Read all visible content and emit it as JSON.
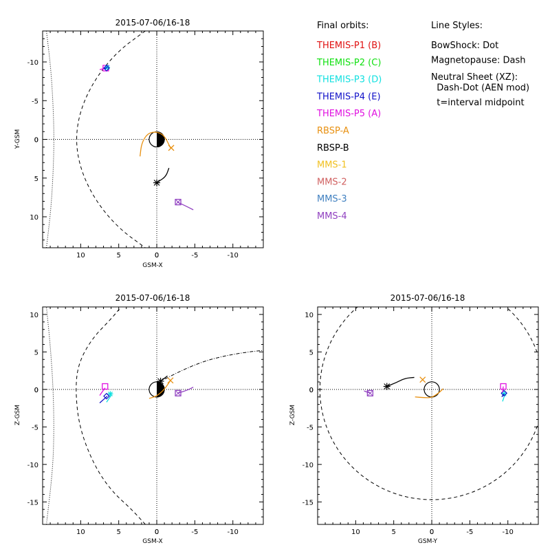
{
  "legend": {
    "orbits_title": "Final orbits:",
    "styles_title": "Line Styles:",
    "spacecraft": [
      {
        "label": "THEMIS-P1 (B)",
        "color": "#e01010"
      },
      {
        "label": "THEMIS-P2 (C)",
        "color": "#10e010"
      },
      {
        "label": "THEMIS-P3 (D)",
        "color": "#10e0e0"
      },
      {
        "label": "THEMIS-P4 (E)",
        "color": "#1010c8"
      },
      {
        "label": "THEMIS-P5 (A)",
        "color": "#e010e0"
      },
      {
        "label": "RBSP-A",
        "color": "#e89010"
      },
      {
        "label": "RBSP-B",
        "color": "#000000"
      },
      {
        "label": "MMS-1",
        "color": "#f0c020"
      },
      {
        "label": "MMS-2",
        "color": "#d06060"
      },
      {
        "label": "MMS-3",
        "color": "#4080c0"
      },
      {
        "label": "MMS-4",
        "color": "#9040c0"
      }
    ],
    "styles": [
      "BowShock: Dot",
      "Magnetopause: Dash",
      "Neutral Sheet (XZ):",
      "  Dash-Dot (AEN mod)",
      "  t=interval midpoint"
    ]
  },
  "chart_data": [
    {
      "type": "line",
      "title": "2015-07-06/16-18",
      "xlabel": "GSM-X",
      "ylabel": "Y-GSM",
      "xlim": [
        15,
        -14
      ],
      "ylim": [
        -14,
        14
      ],
      "y_inverted": true,
      "xticks": [
        10,
        5,
        0,
        -5,
        -10
      ],
      "yticks": [
        -10,
        -5,
        0,
        5,
        10
      ],
      "bow_shock": [
        [
          14.5,
          -14
        ],
        [
          13.9,
          -9
        ],
        [
          13.6,
          -4
        ],
        [
          13.5,
          0
        ],
        [
          13.6,
          4
        ],
        [
          13.9,
          9
        ],
        [
          14.5,
          14
        ]
      ],
      "magnetopause": [
        [
          1.5,
          -14
        ],
        [
          5,
          -11.5
        ],
        [
          8,
          -8
        ],
        [
          10,
          -4
        ],
        [
          10.7,
          0
        ],
        [
          10,
          4
        ],
        [
          8,
          8
        ],
        [
          5,
          11.5
        ],
        [
          1.5,
          14
        ]
      ],
      "series": [
        {
          "name": "THEMIS-P5 (A)",
          "points": [
            [
              7.5,
              -9.0
            ],
            [
              6.5,
              -9.3
            ]
          ],
          "marker": [
            6.7,
            -9.2
          ]
        },
        {
          "name": "THEMIS-P3 (D)",
          "points": [
            [
              6.8,
              -9.0
            ],
            [
              6.3,
              -9.5
            ]
          ],
          "marker": [
            6.5,
            -9.3
          ]
        },
        {
          "name": "THEMIS-P4 (E)",
          "points": [
            [
              6.9,
              -9.1
            ],
            [
              6.5,
              -9.3
            ]
          ],
          "marker": [
            6.6,
            -9.2
          ]
        },
        {
          "name": "RBSP-A",
          "points": [
            [
              2.2,
              2.2
            ],
            [
              2.0,
              0.5
            ],
            [
              1.2,
              -0.8
            ],
            [
              0,
              -1.0
            ],
            [
              -1.0,
              -0.5
            ],
            [
              -1.8,
              1.1
            ]
          ],
          "marker": [
            -1.9,
            1.1
          ]
        },
        {
          "name": "RBSP-B",
          "points": [
            [
              -1.6,
              3.7
            ],
            [
              -1.2,
              4.8
            ],
            [
              -0.3,
              5.4
            ],
            [
              0,
              5.6
            ]
          ],
          "marker": [
            0,
            5.6
          ]
        },
        {
          "name": "MMS-4",
          "points": [
            [
              -2.7,
              8.1
            ],
            [
              -3.8,
              8.6
            ],
            [
              -4.8,
              9.1
            ]
          ],
          "marker": [
            -2.8,
            8.1
          ]
        }
      ]
    },
    {
      "type": "line",
      "title": "2015-07-06/16-18",
      "xlabel": "GSM-X",
      "ylabel": "Z-GSM",
      "xlim": [
        15,
        -14
      ],
      "ylim": [
        -18,
        11
      ],
      "xticks": [
        10,
        5,
        0,
        -5,
        -10
      ],
      "yticks": [
        -15,
        -10,
        -5,
        0,
        5,
        10
      ],
      "bow_shock": [
        [
          14.5,
          -18
        ],
        [
          13.7,
          -11
        ],
        [
          13.5,
          -6
        ],
        [
          13.6,
          0
        ],
        [
          14.0,
          6
        ],
        [
          14.5,
          11
        ]
      ],
      "magnetopause": [
        [
          1.5,
          -18
        ],
        [
          3.3,
          -16
        ],
        [
          6,
          -13.5
        ],
        [
          8.3,
          -10
        ],
        [
          10.2,
          -5
        ],
        [
          10.7,
          0
        ],
        [
          10.3,
          3.5
        ],
        [
          8.5,
          6.8
        ],
        [
          6,
          9.4
        ],
        [
          4.7,
          11
        ]
      ],
      "neutral_sheet": [
        [
          -1.1,
          1.4
        ],
        [
          -3,
          2.4
        ],
        [
          -6,
          3.7
        ],
        [
          -9,
          4.5
        ],
        [
          -12,
          5
        ],
        [
          -14,
          5.2
        ]
      ],
      "series": [
        {
          "name": "THEMIS-P5 (A)",
          "points": [
            [
              7.5,
              -0.8
            ],
            [
              6.8,
              0.2
            ]
          ],
          "marker": [
            6.8,
            0.4
          ]
        },
        {
          "name": "THEMIS-P3 (D)",
          "points": [
            [
              6.6,
              -1.7
            ],
            [
              6.0,
              -0.8
            ]
          ],
          "marker": [
            6.1,
            -0.6
          ]
        },
        {
          "name": "THEMIS-P4 (E)",
          "points": [
            [
              7.5,
              -1.8
            ],
            [
              6.5,
              -0.9
            ]
          ],
          "marker": [
            6.6,
            -0.9
          ]
        },
        {
          "name": "RBSP-A",
          "points": [
            [
              1.0,
              -1.2
            ],
            [
              0,
              -0.9
            ],
            [
              -1,
              0
            ],
            [
              -1.8,
              1.2
            ]
          ],
          "marker": [
            -1.8,
            1.2
          ]
        },
        {
          "name": "RBSP-B",
          "points": [
            [
              -1.4,
              1.8
            ],
            [
              -0.9,
              1.4
            ],
            [
              -0.5,
              1.1
            ]
          ],
          "marker": [
            -0.5,
            1.1
          ]
        },
        {
          "name": "MMS-4",
          "points": [
            [
              -2.8,
              -0.5
            ],
            [
              -4,
              -0.1
            ],
            [
              -4.8,
              0.3
            ]
          ],
          "marker": [
            -2.8,
            -0.5
          ]
        }
      ]
    },
    {
      "type": "line",
      "title": "2015-07-06/16-18",
      "xlabel": "GSM-Y",
      "ylabel": "Z-GSM",
      "xlim": [
        15,
        -14
      ],
      "ylim": [
        -18,
        11
      ],
      "xticks": [
        10,
        5,
        0,
        -5,
        -10
      ],
      "yticks": [
        -15,
        -10,
        -5,
        0,
        5,
        10
      ],
      "magnetopause_circle": {
        "center": [
          0,
          0
        ],
        "radius": 14.7
      },
      "series": [
        {
          "name": "RBSP-B",
          "points": [
            [
              5.9,
              0.4
            ],
            [
              4.7,
              0.9
            ],
            [
              3.5,
              1.5
            ],
            [
              2.3,
              1.6
            ]
          ],
          "marker": [
            5.9,
            0.4
          ]
        },
        {
          "name": "RBSP-A",
          "points": [
            [
              2.2,
              -1.0
            ],
            [
              1.0,
              -1.1
            ],
            [
              0,
              -1.1
            ],
            [
              -1.0,
              -0.4
            ],
            [
              -1.5,
              0.1
            ]
          ],
          "marker": [
            1.2,
            1.3
          ]
        },
        {
          "name": "MMS-4",
          "points": [
            [
              8.9,
              -0.2
            ],
            [
              8.4,
              -0.4
            ],
            [
              8.0,
              -0.5
            ]
          ],
          "marker": [
            8.1,
            -0.5
          ]
        },
        {
          "name": "THEMIS-P3 (D)",
          "points": [
            [
              -9.3,
              -1.6
            ],
            [
              -9.6,
              -0.7
            ]
          ],
          "marker": [
            -9.5,
            -0.6
          ]
        },
        {
          "name": "THEMIS-P4 (E)",
          "points": [
            [
              -9.2,
              -1.0
            ],
            [
              -9.5,
              -0.6
            ]
          ],
          "marker": [
            -9.5,
            -0.5
          ]
        },
        {
          "name": "THEMIS-P5 (A)",
          "points": [
            [
              -9.3,
              -0.4
            ],
            [
              -9.4,
              0.4
            ]
          ],
          "marker": [
            -9.4,
            0.4
          ]
        }
      ]
    }
  ]
}
